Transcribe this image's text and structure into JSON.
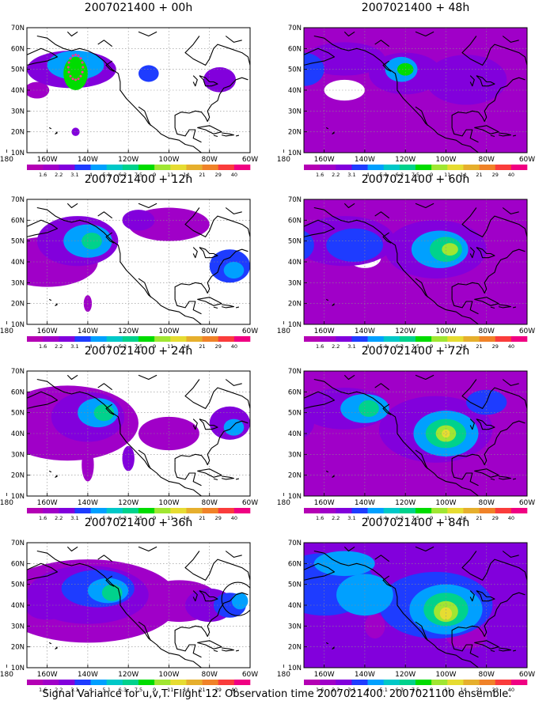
{
  "colors": {
    "levels": [
      "#ffffff",
      "#a000c8",
      "#8200dc",
      "#1e3cff",
      "#00a0ff",
      "#00c8c8",
      "#00d28c",
      "#00dc00",
      "#a0e632",
      "#e6dc32",
      "#e6af2d",
      "#f08228",
      "#fa3c3c",
      "#f00082"
    ],
    "coast": "#000000",
    "grid": "#8c8c8c",
    "obs_marker": "#ff3399"
  },
  "map": {
    "lat_labels": [
      "70N",
      "60N",
      "50N",
      "40N",
      "30N",
      "20N",
      "10N"
    ],
    "lon_labels": [
      "180",
      "160W",
      "140W",
      "120W",
      "100W",
      "80W",
      "60W"
    ],
    "colorbar_labels": [
      "1.6",
      "2.2",
      "3.1",
      "4",
      "5.1",
      "6.3",
      "7.5",
      "9",
      "11",
      "14",
      "21",
      "29",
      "40"
    ]
  },
  "panels": [
    {
      "title": "2007021400 + 00h",
      "field": {
        "bg": 0,
        "blobs": [
          [
            148,
            50,
            22,
            9,
            2
          ],
          [
            146,
            52,
            14,
            7,
            4
          ],
          [
            146,
            48,
            6,
            8,
            7
          ],
          [
            110,
            48,
            5,
            4,
            3
          ],
          [
            75,
            45,
            8,
            6,
            2
          ],
          [
            146,
            20,
            2,
            2,
            2
          ],
          [
            165,
            40,
            6,
            4,
            1
          ]
        ]
      },
      "obs": true
    },
    {
      "title": "2007021400 + 12h",
      "field": {
        "bg": 0,
        "blobs": [
          [
            160,
            40,
            25,
            12,
            1
          ],
          [
            145,
            50,
            20,
            12,
            2
          ],
          [
            140,
            50,
            12,
            8,
            4
          ],
          [
            138,
            50,
            5,
            4,
            6
          ],
          [
            100,
            58,
            20,
            8,
            1
          ],
          [
            70,
            38,
            10,
            8,
            3
          ],
          [
            68,
            36,
            5,
            4,
            4
          ],
          [
            140,
            20,
            2,
            4,
            1
          ],
          [
            115,
            60,
            8,
            5,
            2
          ]
        ]
      },
      "obs": false
    },
    {
      "title": "2007021400 + 24h",
      "field": {
        "bg": 0,
        "blobs": [
          [
            150,
            45,
            35,
            18,
            1
          ],
          [
            140,
            48,
            18,
            12,
            2
          ],
          [
            135,
            50,
            10,
            7,
            4
          ],
          [
            132,
            50,
            5,
            4,
            6
          ],
          [
            100,
            40,
            15,
            8,
            1
          ],
          [
            70,
            45,
            10,
            8,
            2
          ],
          [
            68,
            43,
            5,
            4,
            4
          ],
          [
            140,
            25,
            3,
            8,
            1
          ],
          [
            120,
            28,
            3,
            6,
            2
          ],
          [
            175,
            38,
            8,
            6,
            1
          ]
        ]
      },
      "obs": false
    },
    {
      "title": "2007021400 + 36h",
      "field": {
        "bg": 0,
        "blobs": [
          [
            140,
            42,
            45,
            20,
            1
          ],
          [
            140,
            45,
            30,
            14,
            2
          ],
          [
            135,
            48,
            18,
            9,
            3
          ],
          [
            130,
            47,
            10,
            6,
            4
          ],
          [
            128,
            46,
            5,
            4,
            6
          ],
          [
            95,
            42,
            20,
            10,
            1
          ],
          [
            80,
            40,
            12,
            8,
            2
          ],
          [
            70,
            40,
            8,
            6,
            3
          ],
          [
            65,
            42,
            4,
            4,
            4
          ],
          [
            160,
            38,
            10,
            5,
            2
          ]
        ]
      },
      "obs": false,
      "circle": [
        66,
        43,
        8,
        8
      ]
    },
    {
      "title": "2007021400 + 48h",
      "field": {
        "bg": 1,
        "blobs": [
          [
            170,
            50,
            10,
            8,
            3
          ],
          [
            150,
            55,
            20,
            8,
            2
          ],
          [
            120,
            48,
            18,
            10,
            2
          ],
          [
            122,
            50,
            8,
            6,
            4
          ],
          [
            120,
            50,
            4,
            3,
            7
          ],
          [
            90,
            45,
            20,
            12,
            2
          ],
          [
            150,
            40,
            10,
            5,
            0
          ],
          [
            95,
            55,
            8,
            5,
            1
          ],
          [
            110,
            30,
            8,
            5,
            1
          ]
        ]
      },
      "obs": false
    },
    {
      "title": "2007021400 + 60h",
      "field": {
        "bg": 1,
        "blobs": [
          [
            150,
            50,
            25,
            12,
            2
          ],
          [
            145,
            48,
            14,
            8,
            3
          ],
          [
            105,
            46,
            25,
            14,
            2
          ],
          [
            103,
            46,
            14,
            9,
            4
          ],
          [
            100,
            46,
            8,
            6,
            6
          ],
          [
            98,
            46,
            4,
            3,
            8
          ],
          [
            140,
            42,
            8,
            5,
            0
          ],
          [
            175,
            48,
            10,
            8,
            3
          ],
          [
            120,
            25,
            10,
            8,
            1
          ]
        ]
      },
      "obs": false
    },
    {
      "title": "2007021400 + 72h",
      "field": {
        "bg": 1,
        "blobs": [
          [
            150,
            52,
            22,
            10,
            2
          ],
          [
            140,
            52,
            12,
            7,
            4
          ],
          [
            138,
            52,
            5,
            4,
            6
          ],
          [
            105,
            42,
            28,
            16,
            2
          ],
          [
            100,
            40,
            16,
            11,
            4
          ],
          [
            100,
            40,
            10,
            7,
            6
          ],
          [
            100,
            40,
            5,
            4,
            8
          ],
          [
            100,
            40,
            2,
            2,
            9
          ],
          [
            175,
            45,
            10,
            8,
            2
          ],
          [
            130,
            22,
            6,
            8,
            1
          ],
          [
            80,
            55,
            10,
            6,
            3
          ]
        ]
      },
      "obs": false
    },
    {
      "title": "2007021400 + 84h",
      "field": {
        "bg": 2,
        "blobs": [
          [
            160,
            50,
            25,
            15,
            3
          ],
          [
            140,
            45,
            14,
            10,
            4
          ],
          [
            105,
            40,
            28,
            16,
            3
          ],
          [
            100,
            38,
            18,
            12,
            4
          ],
          [
            100,
            38,
            11,
            8,
            6
          ],
          [
            100,
            37,
            6,
            5,
            8
          ],
          [
            100,
            36,
            3,
            3,
            9
          ],
          [
            175,
            42,
            8,
            8,
            2
          ],
          [
            150,
            60,
            15,
            6,
            4
          ],
          [
            90,
            25,
            10,
            6,
            1
          ],
          [
            135,
            30,
            5,
            6,
            1
          ]
        ]
      },
      "obs": false
    }
  ],
  "footer": "Signal Variance for u,v,T. Flight 12. Observation time 2007021400. 2007021100 ensemble."
}
